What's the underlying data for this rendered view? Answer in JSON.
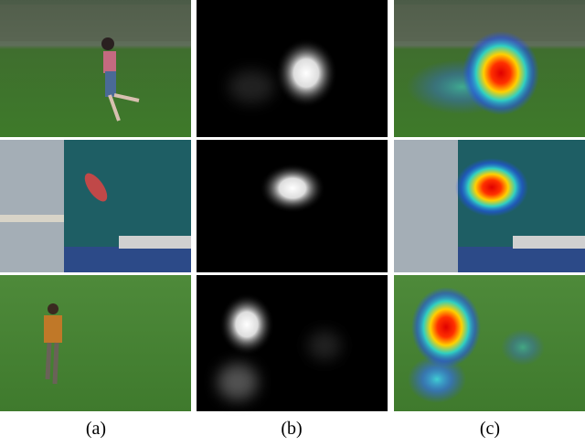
{
  "captions": [
    "(a)",
    "(b)",
    "(c)"
  ]
}
